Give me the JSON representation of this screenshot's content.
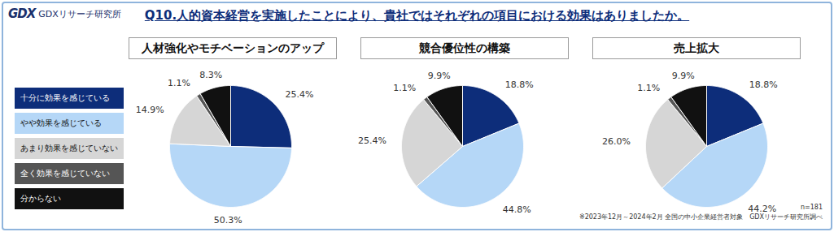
{
  "header": {
    "brand": "GDXリサーチ研究所",
    "brand_mark": "GDX",
    "question": "Q10.人的資本経営を実施したことにより、貴社ではそれぞれの項目における効果はありましたか。"
  },
  "footer": {
    "n": "n=181",
    "note": "※2023年12月～2024年2月 全国の中小企業経営者対象　GDXリサーチ研究所調べ"
  },
  "chart_data": [
    {
      "type": "pie",
      "title": "人材強化やモチベーションのアップ",
      "categories": [
        "十分に効果を感じている",
        "やや効果を感じている",
        "あまり効果を感じていない",
        "全く効果を感じていない",
        "分からない"
      ],
      "values": [
        25.4,
        50.3,
        14.9,
        1.1,
        8.3
      ],
      "value_labels": [
        "25.4%",
        "50.3%",
        "14.9%",
        "1.1%",
        "8.3%"
      ],
      "colors": [
        "#0d2d7a",
        "#b5d7f7",
        "#d6d6d6",
        "#555555",
        "#111111"
      ],
      "data_labels": true,
      "legend": "left"
    },
    {
      "type": "pie",
      "title": "競合優位性の構築",
      "categories": [
        "十分に効果を感じている",
        "やや効果を感じている",
        "あまり効果を感じていない",
        "全く効果を感じていない",
        "分からない"
      ],
      "values": [
        18.8,
        44.8,
        25.4,
        1.1,
        9.9
      ],
      "value_labels": [
        "18.8%",
        "44.8%",
        "25.4%",
        "1.1%",
        "9.9%"
      ],
      "colors": [
        "#0d2d7a",
        "#b5d7f7",
        "#d6d6d6",
        "#555555",
        "#111111"
      ],
      "data_labels": true
    },
    {
      "type": "pie",
      "title": "売上拡大",
      "categories": [
        "十分に効果を感じている",
        "やや効果を感じている",
        "あまり効果を感じていない",
        "全く効果を感じていない",
        "分からない"
      ],
      "values": [
        18.8,
        44.2,
        26.0,
        1.1,
        9.9
      ],
      "value_labels": [
        "18.8%",
        "44.2%",
        "26.0%",
        "1.1%",
        "9.9%"
      ],
      "colors": [
        "#0d2d7a",
        "#b5d7f7",
        "#d6d6d6",
        "#555555",
        "#111111"
      ],
      "data_labels": true
    }
  ]
}
